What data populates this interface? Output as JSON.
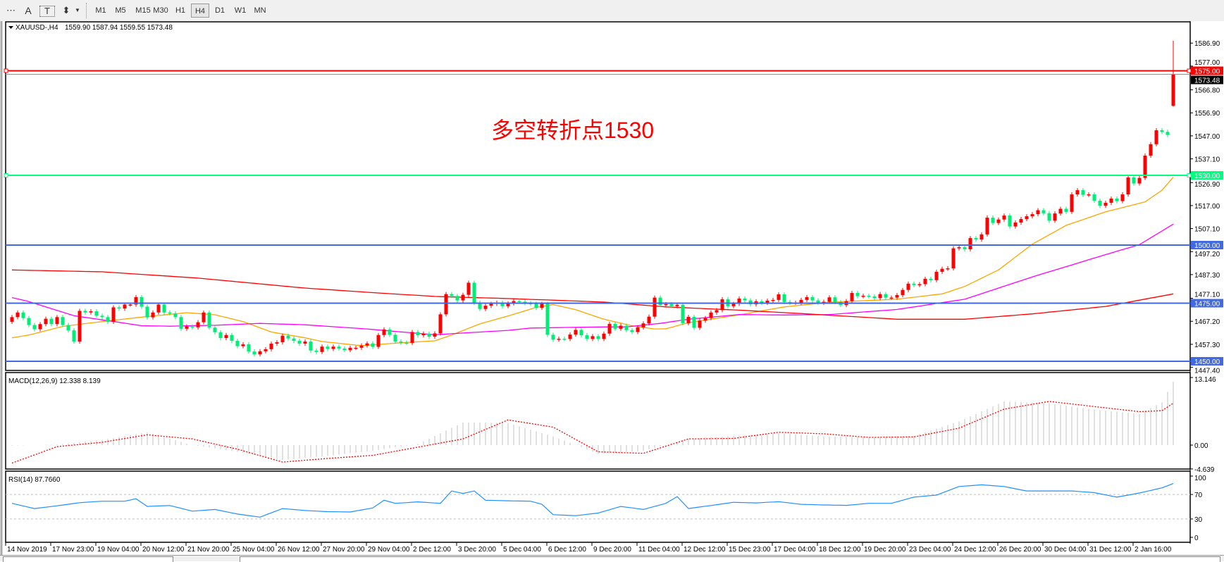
{
  "toolbar": {
    "tools": [
      {
        "name": "grid-icon",
        "label": "⋯"
      },
      {
        "name": "text-icon",
        "label": "A"
      },
      {
        "name": "text-label-icon",
        "label": "T"
      },
      {
        "name": "arrows-icon",
        "label": "⬍"
      }
    ],
    "timeframes": [
      "M1",
      "M5",
      "M15",
      "M30",
      "H1",
      "H4",
      "D1",
      "W1",
      "MN"
    ],
    "active_timeframe": "H4"
  },
  "header": {
    "symbol": "XAUUSD-,H4",
    "ohlc": "1559.90 1587.94 1559.55 1573.48"
  },
  "annotation": {
    "text": "多空转折点1530",
    "color": "#ff0000"
  },
  "colors": {
    "bull": "#ff0000",
    "bear": "#00ee76",
    "ma_fast": "#ffa500",
    "ma_mid": "#ff00ff",
    "ma_slow": "#ff0000",
    "level_red": "#ff0000",
    "level_green": "#00ff7f",
    "level_blue": "#4169e1",
    "rsi": "#1e90ff",
    "macd_hist": "#c0c0c0",
    "macd_signal": "#ff0000"
  },
  "chart_data": [
    {
      "type": "candlestick",
      "title": "XAUUSD-,H4",
      "ylim": [
        1446,
        1596
      ],
      "price_ticks": [
        "1586.90",
        "1577.00",
        "1566.80",
        "1556.90",
        "1547.00",
        "1537.10",
        "1526.90",
        "1517.00",
        "1507.10",
        "1497.20",
        "1487.30",
        "1477.10",
        "1467.20",
        "1457.30",
        "1447.40"
      ],
      "first_open": 1467,
      "closes": [
        1469,
        1471,
        1468.6,
        1465.6,
        1463.8,
        1466,
        1468.3,
        1466,
        1469,
        1465.6,
        1463.3,
        1458.5,
        1471.7,
        1471,
        1471.5,
        1469.6,
        1469,
        1467,
        1473.2,
        1472.7,
        1474.4,
        1474.4,
        1477.6,
        1473.5,
        1468.9,
        1471,
        1474.4,
        1471,
        1470.6,
        1469,
        1464,
        1465,
        1464.6,
        1466.8,
        1471,
        1464.5,
        1462.5,
        1460,
        1461.3,
        1458.8,
        1456.5,
        1457.3,
        1454.2,
        1453,
        1454.3,
        1455.2,
        1457.6,
        1458.2,
        1461,
        1459.8,
        1458.8,
        1457.6,
        1458.5,
        1454.6,
        1454,
        1456.3,
        1455.3,
        1456.3,
        1455.5,
        1454.8,
        1455.8,
        1455.8,
        1456.8,
        1457.7,
        1456.2,
        1461.3,
        1463.7,
        1461.4,
        1458.5,
        1458,
        1457.9,
        1462.6,
        1461.2,
        1461.9,
        1460.6,
        1462,
        1470.2,
        1478.9,
        1478.1,
        1476.2,
        1478.6,
        1483.8,
        1475.2,
        1472.5,
        1473.9,
        1474.7,
        1475.2,
        1473.7,
        1474.9,
        1475.9,
        1475.6,
        1475,
        1474.8,
        1473,
        1474.7,
        1461.4,
        1459.3,
        1459.7,
        1459.6,
        1461.5,
        1463.5,
        1461.2,
        1459.6,
        1460.8,
        1459.6,
        1461.9,
        1466.1,
        1464,
        1465.3,
        1463.4,
        1462.6,
        1464.6,
        1466.3,
        1469.2,
        1477.4,
        1474.2,
        1474.6,
        1473.7,
        1474.3,
        1466.4,
        1469.1,
        1464.4,
        1467.5,
        1468.6,
        1471,
        1472,
        1476.7,
        1473.7,
        1474.7,
        1477,
        1476.2,
        1474.5,
        1475.8,
        1475.2,
        1476.1,
        1476.4,
        1478.8,
        1475.5,
        1475.2,
        1475.2,
        1476.4,
        1477.6,
        1476.2,
        1475.2,
        1475.6,
        1477.5,
        1475.5,
        1474.2,
        1475.9,
        1479.4,
        1478,
        1478.2,
        1477.9,
        1477.2,
        1478.9,
        1477.4,
        1477.4,
        1478.5,
        1480.7,
        1483.4,
        1482.8,
        1483.2,
        1485.5,
        1484.9,
        1488.5,
        1489.8,
        1490,
        1498.6,
        1499.1,
        1498.2,
        1503,
        1502.4,
        1504.6,
        1511.8,
        1509.5,
        1511,
        1512.7,
        1508,
        1509.7,
        1511.2,
        1512.4,
        1513.3,
        1515,
        1513.7,
        1510.5,
        1513.6,
        1515.6,
        1514.3,
        1521.8,
        1523.6,
        1521.6,
        1521.8,
        1519.1,
        1516.9,
        1518.2,
        1520,
        1518.9,
        1521.8,
        1529.1,
        1526.5,
        1528.9,
        1538.5,
        1543.4,
        1549.4,
        1548.7,
        1547.4
      ],
      "last_candle": {
        "open": 1559.9,
        "high": 1587.94,
        "low": 1559.55,
        "close": 1573.48
      },
      "bid_label": "1573.48",
      "moving_averages": [
        {
          "color_key": "ma_fast",
          "points": [
            [
              0,
              1460.1
            ],
            [
              3,
              1461.3
            ],
            [
              9,
              1465
            ],
            [
              16,
              1467.1
            ],
            [
              23,
              1469
            ],
            [
              31,
              1470.9
            ],
            [
              36,
              1470
            ],
            [
              41,
              1467.1
            ],
            [
              46,
              1462.6
            ],
            [
              52,
              1460.1
            ],
            [
              55,
              1458.5
            ],
            [
              62,
              1456.7
            ],
            [
              68,
              1457.8
            ],
            [
              75,
              1458.8
            ],
            [
              78,
              1461.3
            ],
            [
              83,
              1466.1
            ],
            [
              89,
              1470.2
            ],
            [
              93,
              1473.2
            ],
            [
              96,
              1474.4
            ],
            [
              100,
              1472.2
            ],
            [
              105,
              1468.1
            ],
            [
              110,
              1465.3
            ],
            [
              114,
              1463.9
            ],
            [
              116,
              1464
            ],
            [
              120,
              1466.6
            ],
            [
              129,
              1470
            ],
            [
              137,
              1473.4
            ],
            [
              145,
              1475.4
            ],
            [
              157,
              1476.7
            ],
            [
              165,
              1479
            ],
            [
              169,
              1482.2
            ],
            [
              175,
              1489.3
            ],
            [
              181,
              1500.4
            ],
            [
              187,
              1508.5
            ],
            [
              194,
              1514.3
            ],
            [
              201,
              1518.6
            ],
            [
              204,
              1523.6
            ],
            [
              206,
              1529.2
            ]
          ]
        },
        {
          "color_key": "ma_mid",
          "points": [
            [
              0,
              1477.4
            ],
            [
              3,
              1475.7
            ],
            [
              11,
              1469.6
            ],
            [
              20,
              1466.4
            ],
            [
              23,
              1465.3
            ],
            [
              28,
              1465.1
            ],
            [
              36,
              1465.5
            ],
            [
              44,
              1466.3
            ],
            [
              52,
              1465.7
            ],
            [
              63,
              1463.9
            ],
            [
              75,
              1461.4
            ],
            [
              81,
              1462.3
            ],
            [
              88,
              1463.3
            ],
            [
              92,
              1464.3
            ],
            [
              105,
              1464.8
            ],
            [
              109,
              1464.8
            ],
            [
              115,
              1466.3
            ],
            [
              120,
              1468.1
            ],
            [
              129,
              1470.1
            ],
            [
              137,
              1469.9
            ],
            [
              145,
              1470.1
            ],
            [
              157,
              1472.3
            ],
            [
              169,
              1476.7
            ],
            [
              181,
              1486.3
            ],
            [
              194,
              1495.9
            ],
            [
              200,
              1500.2
            ],
            [
              206,
              1509
            ]
          ]
        },
        {
          "color_key": "ma_slow",
          "points": [
            [
              0,
              1489.3
            ],
            [
              16,
              1488.5
            ],
            [
              33,
              1485.8
            ],
            [
              52,
              1481.5
            ],
            [
              63,
              1479.7
            ],
            [
              75,
              1477.9
            ],
            [
              88,
              1477
            ],
            [
              105,
              1475.5
            ],
            [
              116,
              1473.4
            ],
            [
              129,
              1472
            ],
            [
              141,
              1470.4
            ],
            [
              157,
              1468.1
            ],
            [
              169,
              1468.1
            ],
            [
              181,
              1470.4
            ],
            [
              194,
              1473.6
            ],
            [
              206,
              1479
            ]
          ]
        }
      ],
      "levels": [
        {
          "price": 1575,
          "label": "1575.00",
          "color_key": "level_red"
        },
        {
          "price": 1530,
          "label": "1530.00",
          "color_key": "level_green"
        },
        {
          "price": 1500,
          "label": "1500.00",
          "color_key": "level_blue"
        },
        {
          "price": 1475,
          "label": "1475.00",
          "color_key": "level_blue"
        },
        {
          "price": 1450,
          "label": "1450.00",
          "color_key": "level_blue"
        }
      ],
      "x_labels": [
        "14 Nov 2019",
        "17 Nov 23:00",
        "19 Nov 04:00",
        "20 Nov 12:00",
        "21 Nov 20:00",
        "25 Nov 04:00",
        "26 Nov 12:00",
        "27 Nov 20:00",
        "29 Nov 04:00",
        "2 Dec 12:00",
        "3 Dec 20:00",
        "5 Dec 04:00",
        "6 Dec 12:00",
        "9 Dec 20:00",
        "11 Dec 04:00",
        "12 Dec 12:00",
        "15 Dec 23:00",
        "17 Dec 04:00",
        "18 Dec 12:00",
        "19 Dec 20:00",
        "23 Dec 04:00",
        "24 Dec 12:00",
        "26 Dec 20:00",
        "30 Dec 04:00",
        "31 Dec 12:00",
        "2 Jan 16:00"
      ]
    },
    {
      "type": "bar",
      "title": "MACD(12,26,9) 12.338 8.139",
      "ylim": [
        -4.639,
        13.146
      ],
      "y_ticks": [
        "13.146",
        "0.00",
        "-4.639"
      ],
      "histogram_points": [
        [
          0,
          -0.1
        ],
        [
          8,
          0.1
        ],
        [
          16,
          1.0
        ],
        [
          24,
          2.5
        ],
        [
          32,
          0
        ],
        [
          40,
          -1.3
        ],
        [
          48,
          -2.9
        ],
        [
          56,
          -2.1
        ],
        [
          64,
          -1.1
        ],
        [
          72,
          0.2
        ],
        [
          80,
          4.4
        ],
        [
          88,
          4.3
        ],
        [
          96,
          1.7
        ],
        [
          104,
          -1.7
        ],
        [
          112,
          -1.1
        ],
        [
          120,
          1.2
        ],
        [
          128,
          1.8
        ],
        [
          136,
          2.3
        ],
        [
          144,
          1.7
        ],
        [
          152,
          1.5
        ],
        [
          160,
          1.8
        ],
        [
          168,
          4.6
        ],
        [
          176,
          8.5
        ],
        [
          184,
          8.1
        ],
        [
          192,
          6.9
        ],
        [
          200,
          6.1
        ],
        [
          204,
          8.3
        ],
        [
          206,
          12.338
        ]
      ],
      "signal_points": [
        [
          0,
          -3.5
        ],
        [
          8,
          -0.3
        ],
        [
          16,
          0.55
        ],
        [
          24,
          2.0
        ],
        [
          32,
          1.2
        ],
        [
          40,
          -0.8
        ],
        [
          48,
          -3.3
        ],
        [
          56,
          -2.6
        ],
        [
          64,
          -2.0
        ],
        [
          72,
          -0.4
        ],
        [
          80,
          1.2
        ],
        [
          88,
          4.9
        ],
        [
          96,
          3.5
        ],
        [
          104,
          -1.3
        ],
        [
          112,
          -1.6
        ],
        [
          120,
          1.2
        ],
        [
          128,
          1.3
        ],
        [
          136,
          2.5
        ],
        [
          144,
          2.2
        ],
        [
          152,
          1.5
        ],
        [
          160,
          1.6
        ],
        [
          168,
          3.3
        ],
        [
          176,
          7.0
        ],
        [
          184,
          8.5
        ],
        [
          192,
          7.5
        ],
        [
          200,
          6.5
        ],
        [
          204,
          6.7
        ],
        [
          206,
          8.139
        ]
      ]
    },
    {
      "type": "line",
      "title": "RSI(14) 87.7660",
      "ylim": [
        0,
        100
      ],
      "y_ticks": [
        "100",
        "70",
        "30",
        "0"
      ],
      "levels": [
        70,
        30
      ],
      "points": [
        [
          0,
          55.5
        ],
        [
          4,
          47
        ],
        [
          8,
          51.5
        ],
        [
          12,
          56.6
        ],
        [
          16,
          59
        ],
        [
          20,
          59
        ],
        [
          22,
          63
        ],
        [
          24,
          50.5
        ],
        [
          28,
          52
        ],
        [
          32,
          42.8
        ],
        [
          36,
          45.5
        ],
        [
          40,
          38
        ],
        [
          44,
          33
        ],
        [
          48,
          47
        ],
        [
          52,
          43.8
        ],
        [
          56,
          42
        ],
        [
          60,
          41.4
        ],
        [
          64,
          48
        ],
        [
          66,
          60.6
        ],
        [
          68,
          55.5
        ],
        [
          72,
          57.9
        ],
        [
          76,
          55.5
        ],
        [
          78,
          75.7
        ],
        [
          80,
          71.7
        ],
        [
          82,
          75.7
        ],
        [
          84,
          60.6
        ],
        [
          88,
          59.6
        ],
        [
          92,
          59
        ],
        [
          94,
          54
        ],
        [
          96,
          37
        ],
        [
          100,
          35.4
        ],
        [
          104,
          39.7
        ],
        [
          108,
          50.5
        ],
        [
          112,
          45.5
        ],
        [
          116,
          55.5
        ],
        [
          118,
          66.6
        ],
        [
          120,
          47
        ],
        [
          124,
          52
        ],
        [
          128,
          57.2
        ],
        [
          132,
          56.2
        ],
        [
          136,
          58.2
        ],
        [
          140,
          53.9
        ],
        [
          144,
          52.9
        ],
        [
          148,
          52.2
        ],
        [
          152,
          55.5
        ],
        [
          156,
          55.5
        ],
        [
          160,
          65.6
        ],
        [
          164,
          69
        ],
        [
          168,
          83
        ],
        [
          172,
          85.8
        ],
        [
          176,
          83
        ],
        [
          180,
          75.7
        ],
        [
          184,
          75.7
        ],
        [
          188,
          75.7
        ],
        [
          192,
          73
        ],
        [
          196,
          65.6
        ],
        [
          200,
          72.4
        ],
        [
          204,
          80.8
        ],
        [
          206,
          87.766
        ]
      ]
    }
  ]
}
